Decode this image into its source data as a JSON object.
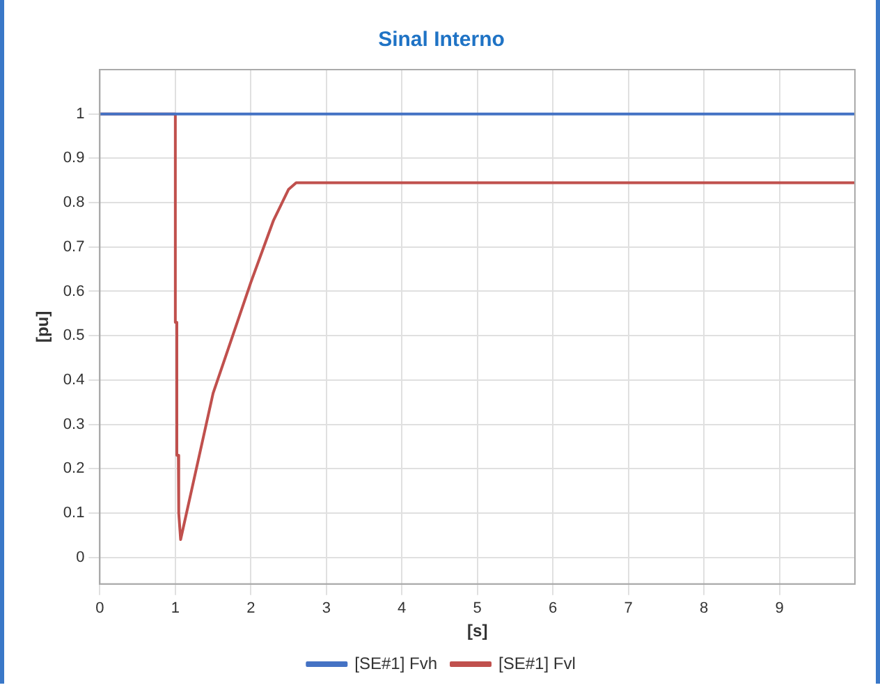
{
  "chart_data": {
    "type": "line",
    "title": "Sinal Interno",
    "xlabel": "[s]",
    "ylabel": "[pu]",
    "xlim": [
      0,
      10
    ],
    "xticks": [
      0,
      1,
      2,
      3,
      4,
      5,
      6,
      7,
      8,
      9
    ],
    "ylim": [
      -0.06,
      1.1
    ],
    "yticks": [
      0,
      0.1,
      0.2,
      0.3,
      0.4,
      0.5,
      0.6,
      0.7,
      0.8,
      0.9,
      1
    ],
    "grid": true,
    "legend": "bottom",
    "marker": "none",
    "line_style": "solid",
    "series": [
      {
        "name": "[SE#1] Fvh",
        "color": "#4472c4",
        "x": [
          0,
          10
        ],
        "values": [
          1,
          1
        ]
      },
      {
        "name": "[SE#1] Fvl",
        "color": "#c0504d",
        "x": [
          0,
          1,
          1,
          1.02,
          1.02,
          1.04,
          1.04,
          1.05,
          1.07,
          1.5,
          2,
          2.3,
          2.5,
          2.6,
          10
        ],
        "values": [
          1,
          1,
          0.53,
          0.53,
          0.23,
          0.23,
          0.1,
          0.1,
          0.04,
          0.37,
          0.62,
          0.76,
          0.83,
          0.845,
          0.845
        ]
      }
    ]
  }
}
